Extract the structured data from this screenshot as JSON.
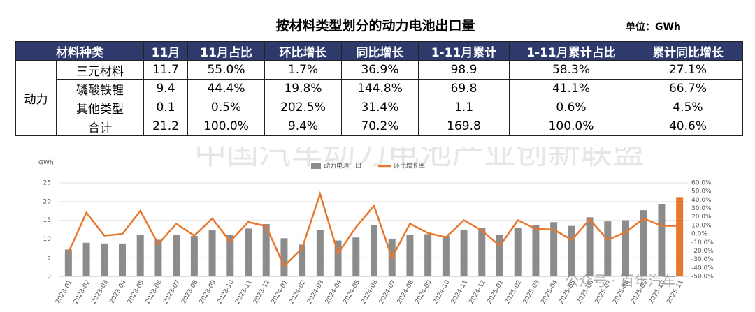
{
  "header": {
    "title": "按材料类型划分的动力电池出口量",
    "unit": "单位：GWh"
  },
  "table": {
    "columns": [
      "材料种类",
      "11月",
      "11月占比",
      "环比增长",
      "同比增长",
      "1-11月累计",
      "1-11月累计占比",
      "累计同比增长"
    ],
    "group": "动力",
    "rows": [
      [
        "三元材料",
        "11.7",
        "55.0%",
        "1.7%",
        "36.9%",
        "98.9",
        "58.3%",
        "27.1%"
      ],
      [
        "磷酸铁锂",
        "9.4",
        "44.4%",
        "19.8%",
        "144.8%",
        "69.8",
        "41.1%",
        "66.7%"
      ],
      [
        "其他类型",
        "0.1",
        "0.5%",
        "202.5%",
        "31.4%",
        "1.1",
        "0.6%",
        "4.5%"
      ],
      [
        "合计",
        "21.2",
        "100.0%",
        "9.4%",
        "70.2%",
        "169.8",
        "100.0%",
        "40.6%"
      ]
    ]
  },
  "watermarks": [
    "中国汽车动力电池产业创新联盟",
    "公众号 · 百年汽车"
  ],
  "chart_data": {
    "type": "combo",
    "y_label": "GWh",
    "categories": [
      "2023-01",
      "2023-02",
      "2023-03",
      "2023-04",
      "2023-05",
      "2023-06",
      "2023-07",
      "2023-08",
      "2023-09",
      "2023-10",
      "2023-11",
      "2023-12",
      "2024-01",
      "2024-02",
      "2024-03",
      "2024-04",
      "2024-05",
      "2024-06",
      "2024-07",
      "2024-08",
      "2024-09",
      "2024-10",
      "2024-11",
      "2024-12",
      "2025-01",
      "2025-02",
      "2025-03",
      "2025-04",
      "2025-05",
      "2025-06",
      "2025-07",
      "2025-08",
      "2025-09",
      "2025-10",
      "2025-11"
    ],
    "series": [
      {
        "name": "动力电池出口",
        "type": "bar",
        "color": "#8c8c8c",
        "colors": [
          "#8c8c8c",
          "#8c8c8c",
          "#8c8c8c",
          "#8c8c8c",
          "#8c8c8c",
          "#8c8c8c",
          "#8c8c8c",
          "#8c8c8c",
          "#8c8c8c",
          "#8c8c8c",
          "#8c8c8c",
          "#8c8c8c",
          "#8c8c8c",
          "#8c8c8c",
          "#8c8c8c",
          "#8c8c8c",
          "#8c8c8c",
          "#8c8c8c",
          "#8c8c8c",
          "#8c8c8c",
          "#8c8c8c",
          "#8c8c8c",
          "#8c8c8c",
          "#8c8c8c",
          "#8c8c8c",
          "#8c8c8c",
          "#8c8c8c",
          "#8c8c8c",
          "#8c8c8c",
          "#8c8c8c",
          "#8c8c8c",
          "#8c8c8c",
          "#8c8c8c",
          "#8c8c8c",
          "#e8772e"
        ],
        "values": [
          7.2,
          9.0,
          8.8,
          8.8,
          11.2,
          9.8,
          11.0,
          10.8,
          12.3,
          11.2,
          12.8,
          14.0,
          10.2,
          8.5,
          12.5,
          9.6,
          10.4,
          13.8,
          10.0,
          11.2,
          11.3,
          10.8,
          12.5,
          13.0,
          11.2,
          13.0,
          13.8,
          14.5,
          13.5,
          15.8,
          14.7,
          15.0,
          17.7,
          19.4,
          21.2
        ]
      },
      {
        "name": "环比增长率",
        "type": "line",
        "axis": "y2",
        "color": "#e8772e",
        "values": [
          -22,
          25,
          -2,
          0,
          27,
          -12,
          12,
          -2,
          18,
          -9,
          14,
          9,
          -38,
          -17,
          47,
          -23,
          8,
          33,
          -28,
          12,
          1,
          -4,
          16,
          4,
          -14,
          16,
          6,
          5,
          -7,
          17,
          -7,
          2,
          18,
          9.6,
          9.4
        ]
      }
    ],
    "ylim": [
      0,
      25
    ],
    "yticks": [
      0,
      5,
      10,
      15,
      20,
      25
    ],
    "y2lim": [
      -50,
      60
    ],
    "y2ticks": [
      {
        "value": -50,
        "label": "-50.0%"
      },
      {
        "value": -40,
        "label": "-40.0%"
      },
      {
        "value": -30,
        "label": "-30.0%"
      },
      {
        "value": -20,
        "label": "-20.0%"
      },
      {
        "value": -10,
        "label": "-10.0%"
      },
      {
        "value": 0,
        "label": "0.0%"
      },
      {
        "value": 10,
        "label": "10.0%"
      },
      {
        "value": 20,
        "label": "20.0%"
      },
      {
        "value": 30,
        "label": "30.0%"
      },
      {
        "value": 40,
        "label": "40.0%"
      },
      {
        "value": 50,
        "label": "50.0%"
      },
      {
        "value": 60,
        "label": "60.0%"
      }
    ],
    "grid": true
  }
}
